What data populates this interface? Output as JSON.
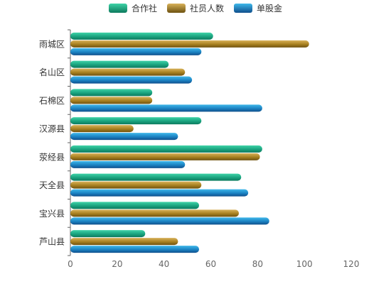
{
  "chart_data": {
    "type": "bar",
    "orientation": "horizontal",
    "categories": [
      "雨城区",
      "名山区",
      "石棉区",
      "汉源县",
      "荥经县",
      "天全县",
      "宝兴县",
      "芦山县"
    ],
    "series": [
      {
        "name": "合作社",
        "values": [
          61,
          42,
          35,
          56,
          82,
          73,
          55,
          32
        ]
      },
      {
        "name": "社员人数",
        "values": [
          102,
          49,
          35,
          27,
          81,
          56,
          72,
          46
        ]
      },
      {
        "name": "单股金",
        "values": [
          56,
          52,
          82,
          46,
          49,
          76,
          85,
          55
        ]
      }
    ],
    "x_ticks": [
      0,
      20,
      40,
      60,
      80,
      100,
      120
    ],
    "xlim": [
      0,
      120
    ],
    "legend_position": "top",
    "grid": false,
    "colors": [
      {
        "light": "#3fd3a7",
        "mid": "#1aa37f",
        "dark": "#0c7a5d"
      },
      {
        "light": "#d8b25a",
        "mid": "#a8801f",
        "dark": "#6e5210"
      },
      {
        "light": "#3fb8ea",
        "mid": "#1b82c2",
        "dark": "#0f4f8c"
      }
    ],
    "axis_color": "#666666",
    "label_color": "#333333"
  }
}
